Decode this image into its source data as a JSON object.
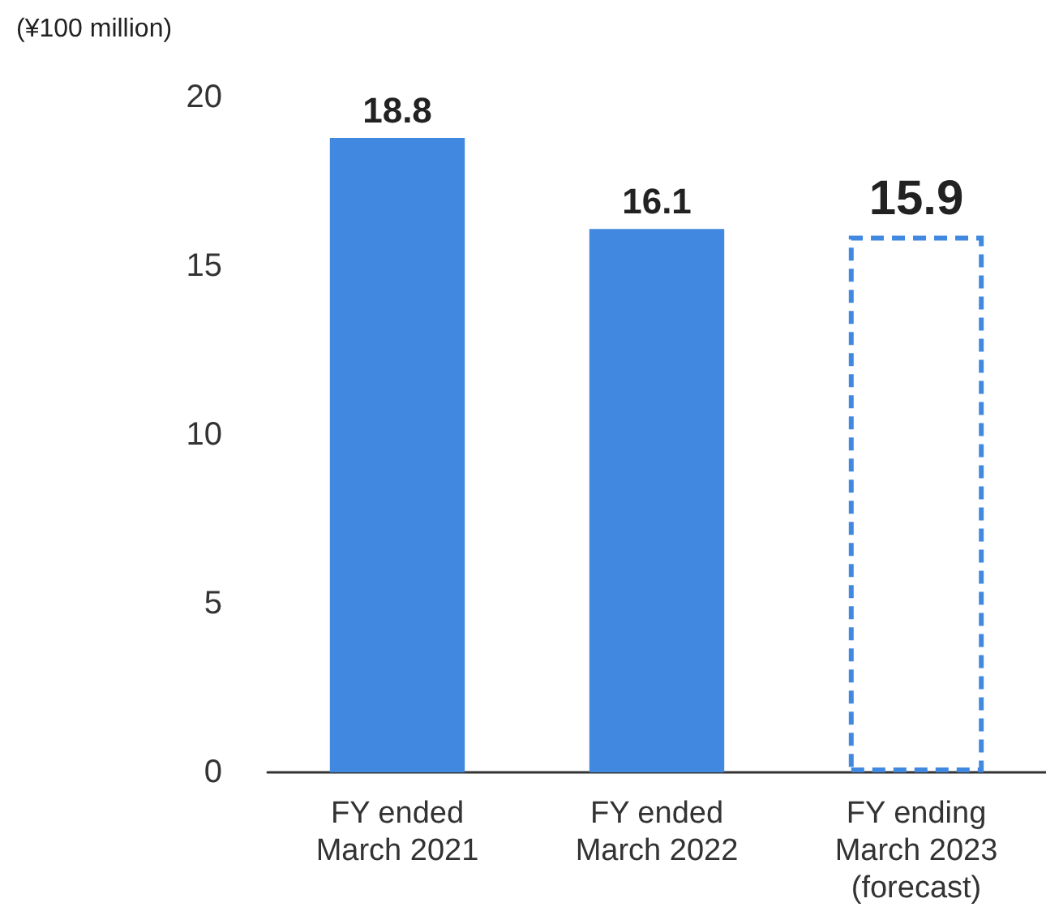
{
  "chart_data": {
    "type": "bar",
    "ylabel": "(¥100 million)",
    "categories": [
      "FY ended\nMarch 2021",
      "FY ended\nMarch 2022",
      "FY ending\nMarch 2023\n(forecast)"
    ],
    "series": [
      {
        "color": "#4189e0",
        "values": [
          18.8,
          16.1,
          null
        ]
      },
      {
        "color": "#4189e0",
        "values": [
          null,
          null,
          15.9
        ],
        "line_style": "dashed"
      }
    ],
    "stacked": true,
    "ylim": [
      0,
      20
    ],
    "yticks": [
      0,
      5,
      10,
      15,
      20
    ],
    "grid": false,
    "data_labels": true
  }
}
